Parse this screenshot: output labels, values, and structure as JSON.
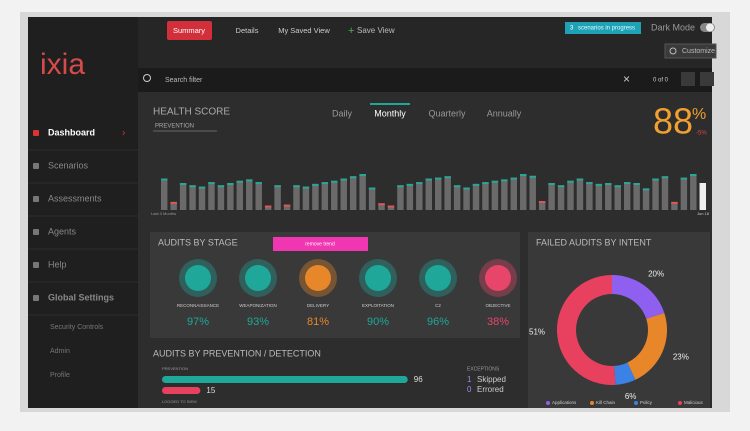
{
  "logo": "ixia",
  "nav": [
    "Dashboard",
    "Scenarios",
    "Assessments",
    "Agents",
    "Help",
    "Global Settings"
  ],
  "subnav": [
    "Security Controls",
    "Admin",
    "Profile"
  ],
  "tabs": [
    "Summary",
    "Details",
    "My Saved View"
  ],
  "save_view": "Save View",
  "badge": {
    "count": "3",
    "text": "scenarios in progress"
  },
  "dark_mode": "Dark Mode",
  "customize": "Customize",
  "search": {
    "placeholder": "Search filter",
    "count": "0 of 0"
  },
  "health": {
    "title": "HEALTH SCORE",
    "filter": "PREVENTION",
    "periods": [
      "Daily",
      "Monthly",
      "Quarterly",
      "Annually"
    ],
    "score": "88",
    "unit": "%",
    "delta": "-5%",
    "start_label": "Last 3 Months",
    "end_label": "Jun 18",
    "ylim": [
      0,
      100
    ],
    "bars": [
      70,
      18,
      60,
      55,
      52,
      62,
      55,
      60,
      65,
      68,
      62,
      10,
      55,
      12,
      55,
      52,
      58,
      62,
      65,
      70,
      75,
      80,
      50,
      15,
      10,
      55,
      58,
      62,
      70,
      72,
      75,
      55,
      50,
      58,
      62,
      65,
      68,
      72,
      80,
      76,
      20,
      60,
      55,
      65,
      70,
      62,
      58,
      60,
      55,
      62,
      60,
      48,
      70,
      75,
      18,
      72,
      80,
      60
    ]
  },
  "stages": {
    "title": "AUDITS BY STAGE",
    "button": "remove trend",
    "items": [
      {
        "name": "RECONNAISSANCE",
        "value": "97%",
        "color": "#1fa89a"
      },
      {
        "name": "WEAPONIZATION",
        "value": "93%",
        "color": "#1fa89a"
      },
      {
        "name": "DELIVERY",
        "value": "81%",
        "color": "#e8872a"
      },
      {
        "name": "EXPLOITATION",
        "value": "90%",
        "color": "#1fa89a"
      },
      {
        "name": "C2",
        "value": "96%",
        "color": "#1fa89a"
      },
      {
        "name": "OBJECTIVE",
        "value": "38%",
        "color": "#e8456a"
      }
    ]
  },
  "intent": {
    "title": "FAILED AUDITS BY INTENT",
    "segments": [
      {
        "name": "Applications",
        "color": "#8f5ff0",
        "value": 20,
        "value_label": "20%"
      },
      {
        "name": "Kill Chain",
        "color": "#e8872a",
        "value": 23,
        "value_label": "23%"
      },
      {
        "name": "Policy",
        "color": "#3b82e6",
        "value": 6,
        "value_label": "6%"
      },
      {
        "name": "Malicious",
        "color": "#e8415f",
        "value": 51,
        "value_label": "51%"
      }
    ]
  },
  "prevention": {
    "title": "AUDITS BY PREVENTION / DETECTION",
    "label": "PREVENTION",
    "xlim": [
      0,
      100
    ],
    "bars": [
      {
        "value": 96,
        "color": "#1fa89a"
      },
      {
        "value": 15,
        "color": "#e8415f"
      }
    ],
    "label2": "LOGGED TO SIEM",
    "exceptions": {
      "title": "EXCEPTIONS",
      "items": [
        {
          "count": "1",
          "label": "Skipped"
        },
        {
          "count": "0",
          "label": "Errored"
        }
      ]
    }
  }
}
